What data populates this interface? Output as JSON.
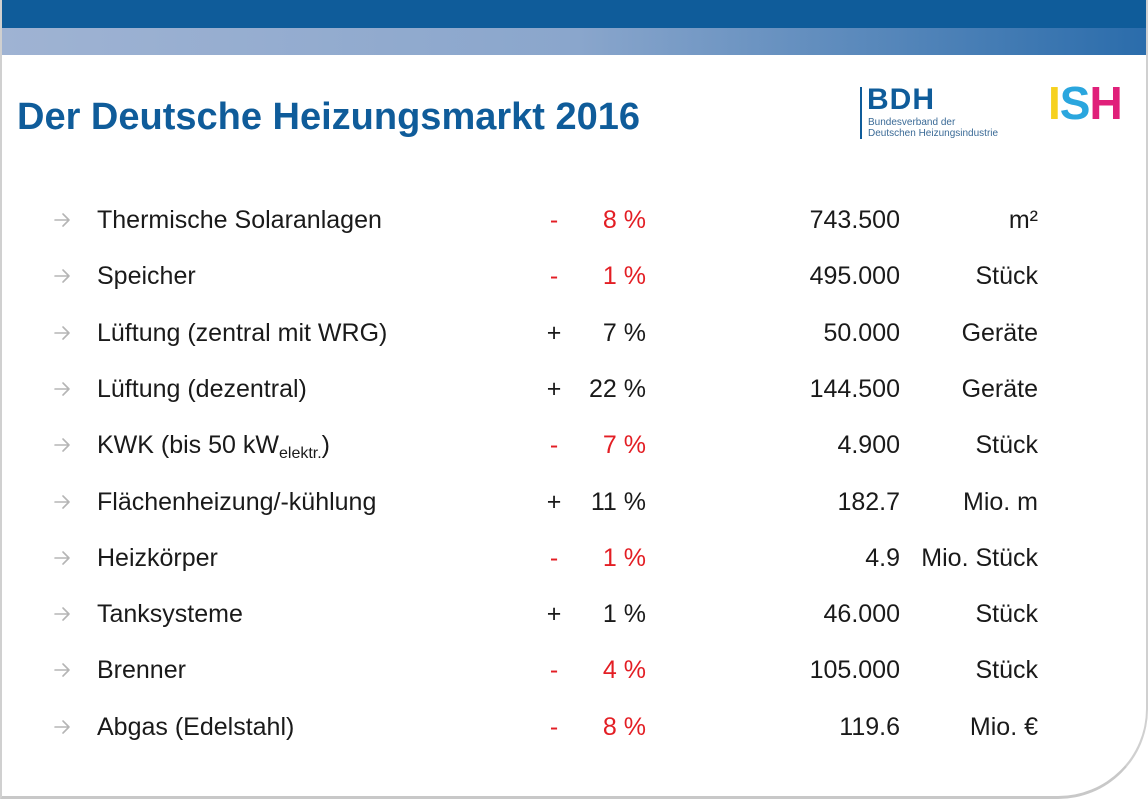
{
  "title": "Der Deutsche Heizungsmarkt 2016",
  "logos": {
    "bdh": {
      "word": "BDH",
      "line1": "Bundesverband der",
      "line2": "Deutschen Heizungsindustrie"
    },
    "ish": {
      "i": "I",
      "s": "S",
      "h": "H"
    }
  },
  "colors": {
    "brand_blue": "#0f5c9a",
    "negative_red": "#e31e24",
    "text": "#1a1a1a"
  },
  "rows": [
    {
      "label": "Thermische Solaranlagen",
      "sub": "",
      "suffix": "",
      "sign": "-",
      "pct": "8 %",
      "value": "743.500",
      "unit": "m²",
      "negative": true
    },
    {
      "label": "Speicher",
      "sub": "",
      "suffix": "",
      "sign": "-",
      "pct": "1 %",
      "value": "495.000",
      "unit": "Stück",
      "negative": true
    },
    {
      "label": "Lüftung (zentral mit WRG)",
      "sub": "",
      "suffix": "",
      "sign": "+",
      "pct": "7 %",
      "value": "50.000",
      "unit": "Geräte",
      "negative": false
    },
    {
      "label": "Lüftung (dezentral)",
      "sub": "",
      "suffix": "",
      "sign": "+",
      "pct": "22 %",
      "value": "144.500",
      "unit": "Geräte",
      "negative": false
    },
    {
      "label": "KWK (bis 50 kW",
      "sub": "elektr.",
      "suffix": ")",
      "sign": "-",
      "pct": "7 %",
      "value": "4.900",
      "unit": "Stück",
      "negative": true
    },
    {
      "label": "Flächenheizung/-kühlung",
      "sub": "",
      "suffix": "",
      "sign": "+",
      "pct": "11 %",
      "value": "182.7",
      "unit": "Mio. m",
      "negative": false
    },
    {
      "label": "Heizkörper",
      "sub": "",
      "suffix": "",
      "sign": "-",
      "pct": "1 %",
      "value": "4.9",
      "unit": "Mio. Stück",
      "negative": true
    },
    {
      "label": "Tanksysteme",
      "sub": "",
      "suffix": "",
      "sign": "+",
      "pct": "1 %",
      "value": "46.000",
      "unit": "Stück",
      "negative": false
    },
    {
      "label": "Brenner",
      "sub": "",
      "suffix": "",
      "sign": "-",
      "pct": "4 %",
      "value": "105.000",
      "unit": "Stück",
      "negative": true
    },
    {
      "label": "Abgas (Edelstahl)",
      "sub": "",
      "suffix": "",
      "sign": "-",
      "pct": "8 %",
      "value": "119.6",
      "unit": "Mio. €",
      "negative": true
    }
  ]
}
